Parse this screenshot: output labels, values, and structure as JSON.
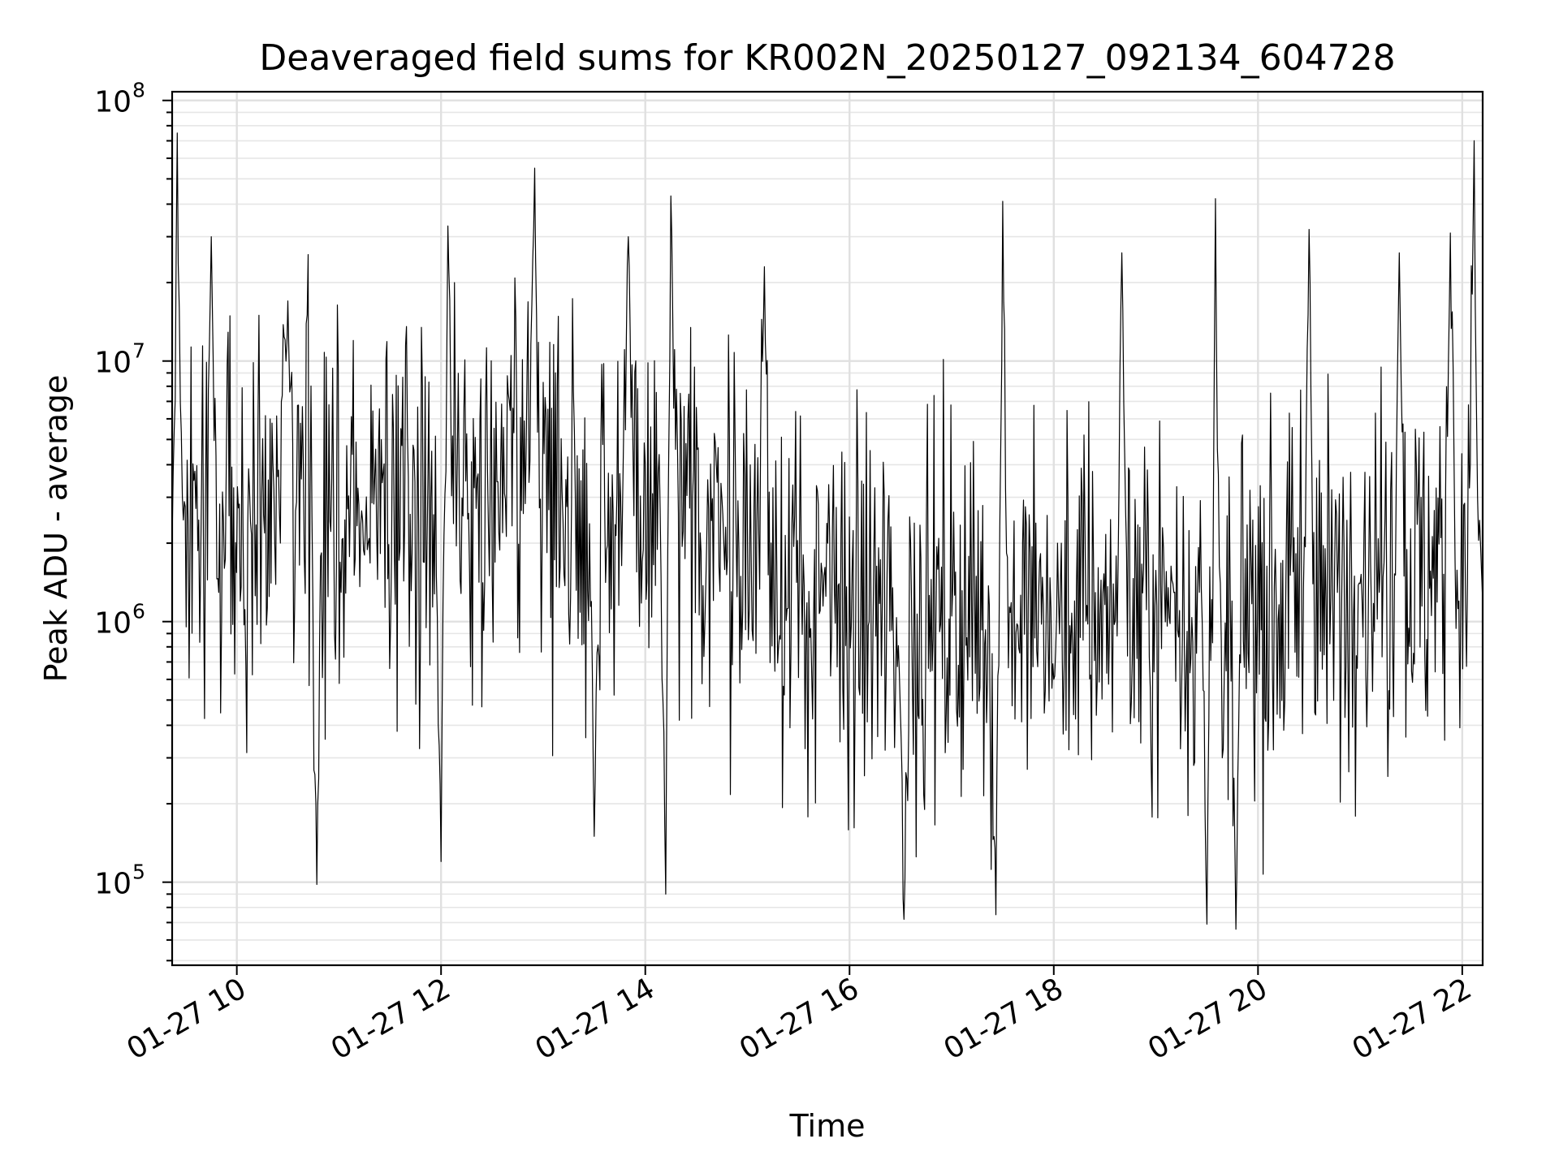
{
  "chart_data": {
    "type": "line",
    "title": "Deaveraged field sums for KR002N_20250127_092134_604728",
    "xlabel": "Time",
    "ylabel": "Peak ADU - average",
    "y_scale": "log",
    "xlim": [
      "2025-01-27 09:22",
      "2025-01-27 22:12"
    ],
    "ylim": [
      48000,
      108000000
    ],
    "grid": true,
    "legend": "none",
    "line_color": "#000000",
    "x_ticks": [
      {
        "value": "2025-01-27 10:00",
        "label": "01-27 10"
      },
      {
        "value": "2025-01-27 12:00",
        "label": "01-27 12"
      },
      {
        "value": "2025-01-27 14:00",
        "label": "01-27 14"
      },
      {
        "value": "2025-01-27 16:00",
        "label": "01-27 16"
      },
      {
        "value": "2025-01-27 18:00",
        "label": "01-27 18"
      },
      {
        "value": "2025-01-27 20:00",
        "label": "01-27 20"
      },
      {
        "value": "2025-01-27 22:00",
        "label": "01-27 22"
      }
    ],
    "y_ticks": [
      {
        "value": 100000,
        "base": "10",
        "exponent": "5"
      },
      {
        "value": 1000000,
        "base": "10",
        "exponent": "6"
      },
      {
        "value": 10000000,
        "base": "10",
        "exponent": "7"
      },
      {
        "value": 100000000,
        "base": "10",
        "exponent": "8"
      }
    ],
    "series": [
      {
        "x": [
          "2025-01-27 09:22",
          "2025-01-27 09:25",
          "2025-01-27 09:28",
          "2025-01-27 09:45",
          "2025-01-27 10:30",
          "2025-01-27 10:47",
          "2025-01-27 11:15",
          "2025-01-27 12:00",
          "2025-01-27 12:04",
          "2025-01-27 12:55",
          "2025-01-27 13:30",
          "2025-01-27 13:50",
          "2025-01-27 14:12",
          "2025-01-27 14:15",
          "2025-01-27 14:45",
          "2025-01-27 15:10",
          "2025-01-27 15:45",
          "2025-01-27 16:32",
          "2025-01-27 17:26",
          "2025-01-27 17:30",
          "2025-01-27 18:00",
          "2025-01-27 18:40",
          "2025-01-27 19:10",
          "2025-01-27 19:30",
          "2025-01-27 19:35",
          "2025-01-27 19:39",
          "2025-01-27 19:47",
          "2025-01-27 20:30",
          "2025-01-27 21:00",
          "2025-01-27 21:23",
          "2025-01-27 21:53",
          "2025-01-27 22:07",
          "2025-01-27 22:09",
          "2025-01-27 22:12"
        ],
        "values": [
          2000000,
          75000000,
          3000000,
          30000000,
          17000000,
          98000,
          1800000,
          120000,
          33000000,
          55000000,
          150000,
          30000000,
          90000,
          43000000,
          3000000,
          23000000,
          1500000,
          72000,
          75000,
          41000000,
          600000,
          26000000,
          1400000,
          69000,
          42000000,
          300000,
          66000,
          32000000,
          1400000,
          26000000,
          31000000,
          70000000,
          3000000,
          1200000
        ]
      }
    ]
  }
}
